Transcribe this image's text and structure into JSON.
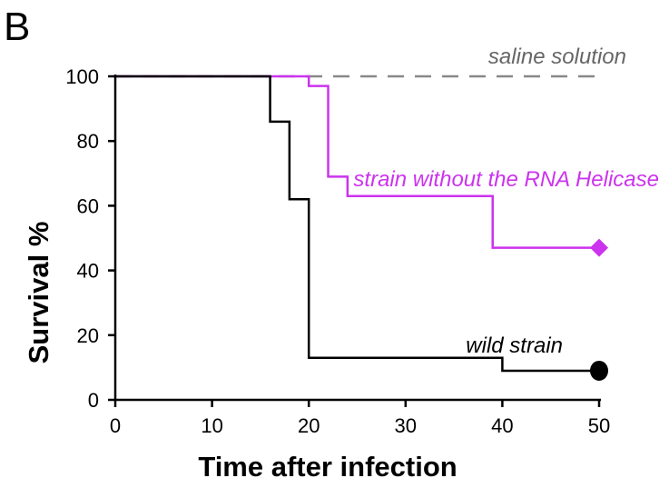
{
  "chart_data": {
    "type": "line",
    "panel_label": "B",
    "xlabel": "Time after infection",
    "ylabel": "Survival %",
    "xlim": [
      0,
      50
    ],
    "ylim": [
      0,
      100
    ],
    "xticks": [
      0,
      10,
      20,
      30,
      40,
      50
    ],
    "yticks": [
      0,
      20,
      40,
      60,
      80,
      100
    ],
    "grid": false,
    "series": [
      {
        "id": "saline",
        "name": "saline solution",
        "color": "#888888",
        "style": "dashed",
        "marker": "none",
        "x": [
          0,
          50
        ],
        "y": [
          100,
          100
        ]
      },
      {
        "id": "mutant",
        "name": "strain without the RNA Helicase",
        "color": "#cc33ee",
        "style": "step",
        "marker": "diamond",
        "x": [
          0,
          20,
          22,
          24,
          39,
          50
        ],
        "y": [
          100,
          97,
          69,
          63,
          47,
          47
        ]
      },
      {
        "id": "wild",
        "name": "wild strain",
        "color": "#000000",
        "style": "step",
        "marker": "circle",
        "x": [
          0,
          16,
          18,
          20,
          40,
          50
        ],
        "y": [
          100,
          86,
          62,
          13,
          9,
          9
        ]
      }
    ],
    "annotations": [
      {
        "text": "saline solution",
        "series": "saline",
        "color": "#666666"
      },
      {
        "text": "strain without the RNA Helicase",
        "series": "mutant",
        "color": "#cc33ee"
      },
      {
        "text": "wild strain",
        "series": "wild",
        "color": "#000000"
      }
    ]
  }
}
